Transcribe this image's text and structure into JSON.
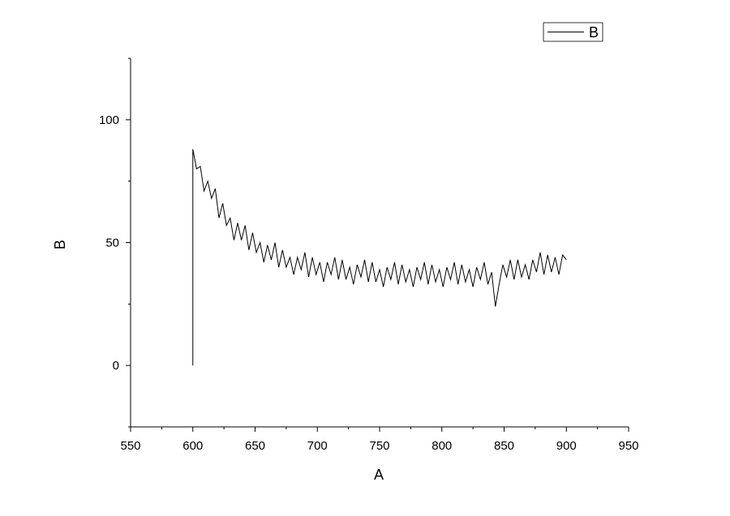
{
  "chart_data": {
    "type": "line",
    "xlabel": "A",
    "ylabel": "B",
    "x": [
      600,
      600,
      603,
      606,
      609,
      612,
      615,
      618,
      621,
      624,
      627,
      630,
      633,
      636,
      639,
      642,
      645,
      648,
      651,
      654,
      657,
      660,
      663,
      666,
      669,
      672,
      675,
      678,
      681,
      684,
      687,
      690,
      693,
      696,
      699,
      702,
      705,
      708,
      711,
      714,
      717,
      720,
      723,
      726,
      729,
      732,
      735,
      738,
      741,
      744,
      747,
      750,
      753,
      756,
      759,
      762,
      765,
      768,
      771,
      774,
      777,
      780,
      783,
      786,
      789,
      792,
      795,
      798,
      801,
      804,
      807,
      810,
      813,
      816,
      819,
      822,
      825,
      828,
      831,
      834,
      837,
      840,
      843,
      846,
      849,
      852,
      855,
      858,
      861,
      864,
      867,
      870,
      873,
      876,
      879,
      882,
      885,
      888,
      891,
      894,
      897,
      900
    ],
    "series": [
      {
        "name": "B",
        "color": "#000000",
        "values": [
          0,
          88,
          80,
          81,
          71,
          75,
          68,
          72,
          60,
          66,
          57,
          60,
          51,
          58,
          51,
          57,
          47,
          54,
          46,
          50,
          42,
          49,
          43,
          50,
          40,
          47,
          40,
          44,
          37,
          44,
          39,
          46,
          36,
          44,
          37,
          42,
          34,
          42,
          37,
          44,
          35,
          43,
          35,
          40,
          33,
          41,
          36,
          43,
          34,
          42,
          34,
          39,
          32,
          40,
          35,
          42,
          33,
          41,
          34,
          39,
          32,
          40,
          35,
          42,
          33,
          41,
          34,
          39,
          32,
          40,
          35,
          42,
          33,
          41,
          34,
          39,
          32,
          40,
          35,
          42,
          33,
          38,
          24,
          33,
          41,
          36,
          43,
          35,
          43,
          36,
          41,
          35,
          43,
          38,
          46,
          37,
          45,
          38,
          44,
          37,
          45,
          43
        ]
      }
    ],
    "xlim": [
      550,
      950
    ],
    "xticks": [
      550,
      600,
      650,
      700,
      750,
      800,
      850,
      900,
      950
    ],
    "ylim": [
      -25,
      125
    ],
    "yticks": [
      0,
      50,
      100
    ],
    "grid": false,
    "legend": "upper right"
  }
}
